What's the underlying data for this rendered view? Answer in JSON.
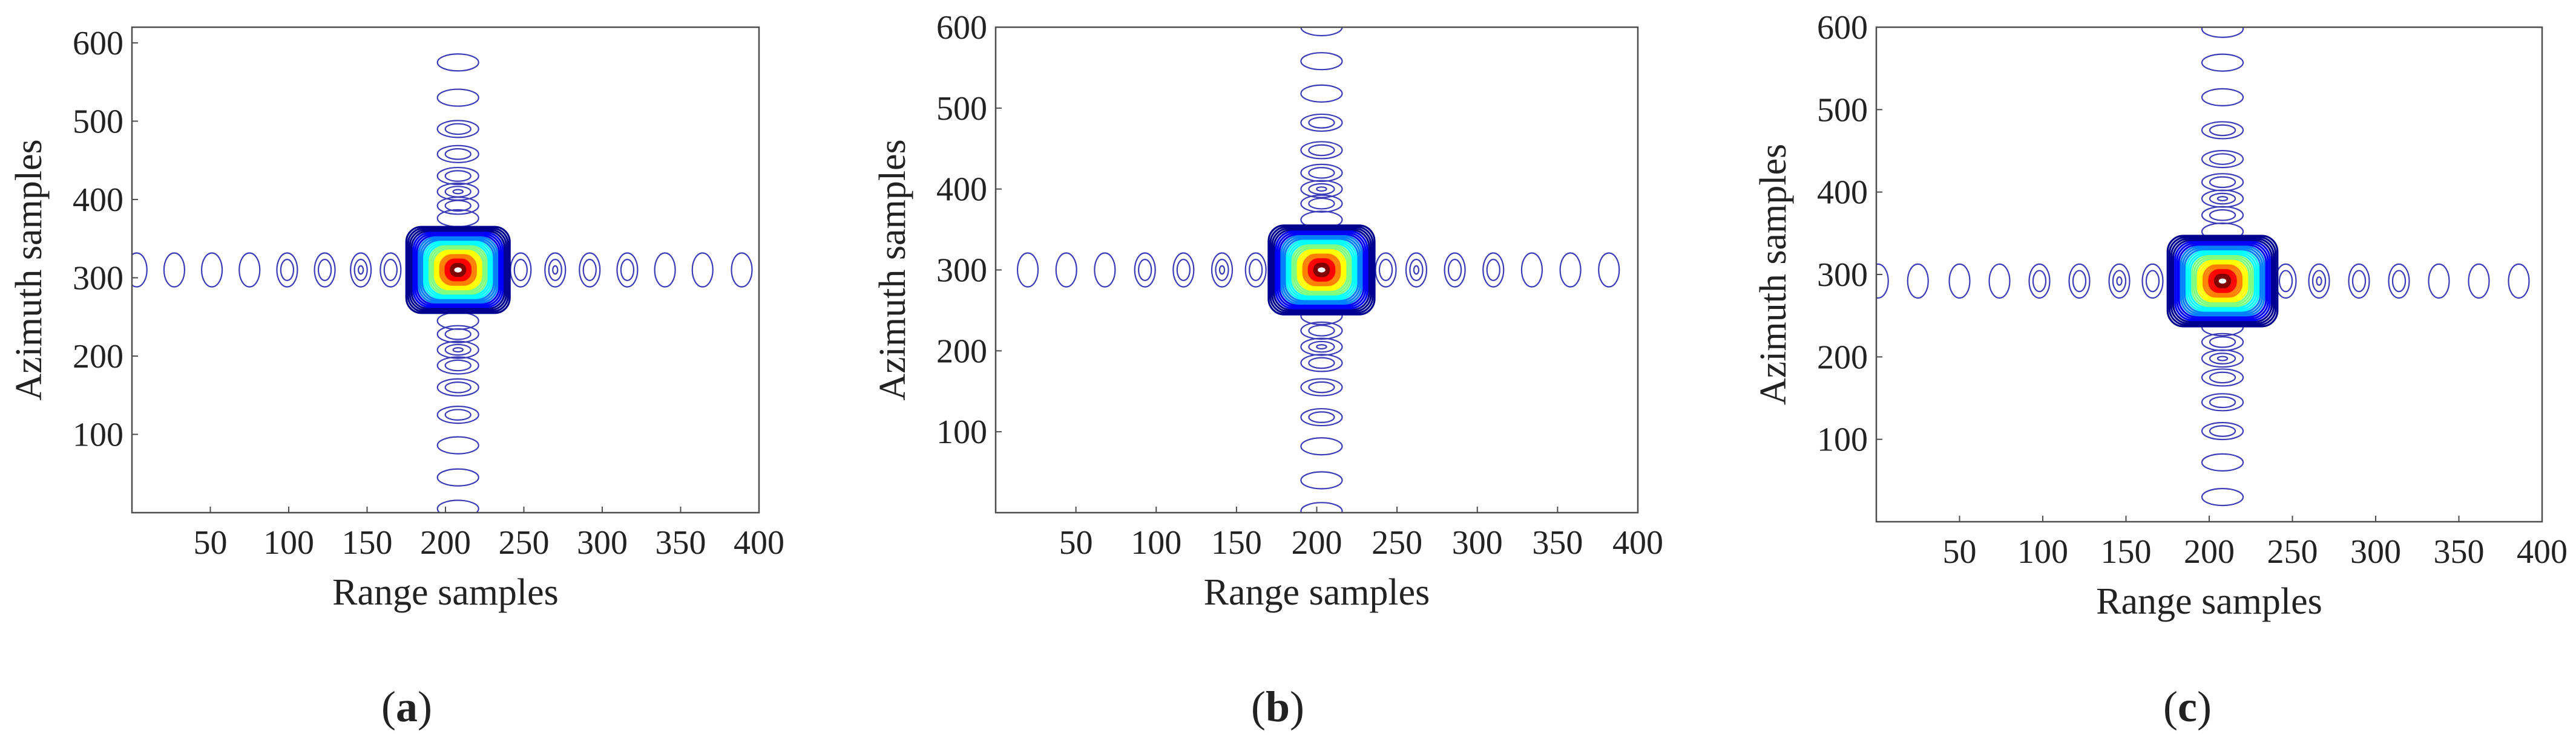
{
  "figure": {
    "colors": {
      "frame": "#4d4d4d",
      "text": "#222222",
      "sidelobe": "#3b3bb8",
      "jet": [
        "#00008f",
        "#0000ff",
        "#0080ff",
        "#00ffff",
        "#80ff80",
        "#ffff00",
        "#ff8000",
        "#ff0000",
        "#800000"
      ]
    }
  },
  "chart_data": [
    {
      "type": "contour",
      "panel_label": "a",
      "xlabel": "Range samples",
      "ylabel": "Azimuth samples",
      "xlim": [
        0,
        400
      ],
      "ylim": [
        0,
        620
      ],
      "xticks": [
        50,
        100,
        150,
        200,
        250,
        300,
        350,
        400
      ],
      "yticks": [
        100,
        200,
        300,
        400,
        500,
        600
      ],
      "peak": {
        "x": 208,
        "y": 310
      },
      "mainlobe_halfwidth": {
        "x": 33,
        "y": 55
      },
      "range_sidelobes": [
        {
          "x": 3,
          "rings": 1
        },
        {
          "x": 27,
          "rings": 1
        },
        {
          "x": 51,
          "rings": 1
        },
        {
          "x": 75,
          "rings": 1
        },
        {
          "x": 99,
          "rings": 2
        },
        {
          "x": 123,
          "rings": 2
        },
        {
          "x": 146,
          "rings": 3
        },
        {
          "x": 165,
          "rings": 2
        },
        {
          "x": 248,
          "rings": 2
        },
        {
          "x": 270,
          "rings": 3
        },
        {
          "x": 292,
          "rings": 2
        },
        {
          "x": 316,
          "rings": 2
        },
        {
          "x": 340,
          "rings": 1
        },
        {
          "x": 364,
          "rings": 1
        },
        {
          "x": 389,
          "rings": 1
        }
      ],
      "azimuth_sidelobes": [
        {
          "y": 5,
          "rings": 1
        },
        {
          "y": 45,
          "rings": 1
        },
        {
          "y": 86,
          "rings": 1
        },
        {
          "y": 125,
          "rings": 2
        },
        {
          "y": 160,
          "rings": 2
        },
        {
          "y": 188,
          "rings": 2
        },
        {
          "y": 208,
          "rings": 3
        },
        {
          "y": 228,
          "rings": 2
        },
        {
          "y": 245,
          "rings": 1
        },
        {
          "y": 376,
          "rings": 1
        },
        {
          "y": 392,
          "rings": 2
        },
        {
          "y": 410,
          "rings": 3
        },
        {
          "y": 430,
          "rings": 2
        },
        {
          "y": 458,
          "rings": 2
        },
        {
          "y": 490,
          "rings": 2
        },
        {
          "y": 530,
          "rings": 1
        },
        {
          "y": 575,
          "rings": 1
        }
      ]
    },
    {
      "type": "contour",
      "panel_label": "b",
      "xlabel": "Range samples",
      "ylabel": "Azimuth samples",
      "xlim": [
        0,
        400
      ],
      "ylim": [
        0,
        600
      ],
      "xticks": [
        50,
        100,
        150,
        200,
        250,
        300,
        350,
        400
      ],
      "yticks": [
        100,
        200,
        300,
        400,
        500,
        600
      ],
      "peak": {
        "x": 203,
        "y": 300
      },
      "mainlobe_halfwidth": {
        "x": 33,
        "y": 55
      },
      "range_sidelobes": [
        {
          "x": 20,
          "rings": 1
        },
        {
          "x": 44,
          "rings": 1
        },
        {
          "x": 68,
          "rings": 1
        },
        {
          "x": 93,
          "rings": 2
        },
        {
          "x": 117,
          "rings": 2
        },
        {
          "x": 141,
          "rings": 3
        },
        {
          "x": 162,
          "rings": 2
        },
        {
          "x": 243,
          "rings": 2
        },
        {
          "x": 262,
          "rings": 3
        },
        {
          "x": 286,
          "rings": 2
        },
        {
          "x": 310,
          "rings": 2
        },
        {
          "x": 334,
          "rings": 1
        },
        {
          "x": 358,
          "rings": 1
        },
        {
          "x": 382,
          "rings": 1
        }
      ],
      "azimuth_sidelobes": [
        {
          "y": 2,
          "rings": 1
        },
        {
          "y": 40,
          "rings": 1
        },
        {
          "y": 82,
          "rings": 1
        },
        {
          "y": 118,
          "rings": 2
        },
        {
          "y": 155,
          "rings": 2
        },
        {
          "y": 185,
          "rings": 2
        },
        {
          "y": 205,
          "rings": 3
        },
        {
          "y": 225,
          "rings": 2
        },
        {
          "y": 243,
          "rings": 1
        },
        {
          "y": 362,
          "rings": 1
        },
        {
          "y": 382,
          "rings": 2
        },
        {
          "y": 400,
          "rings": 3
        },
        {
          "y": 420,
          "rings": 2
        },
        {
          "y": 448,
          "rings": 2
        },
        {
          "y": 482,
          "rings": 2
        },
        {
          "y": 518,
          "rings": 1
        },
        {
          "y": 558,
          "rings": 1
        },
        {
          "y": 600,
          "rings": 1
        }
      ]
    },
    {
      "type": "contour",
      "panel_label": "c",
      "xlabel": "Range samples",
      "ylabel": "Azimuth samples",
      "xlim": [
        0,
        400
      ],
      "ylim": [
        0,
        600
      ],
      "xticks": [
        50,
        100,
        150,
        200,
        250,
        300,
        350,
        400
      ],
      "yticks": [
        100,
        200,
        300,
        400,
        500,
        600
      ],
      "peak": {
        "x": 208,
        "y": 292
      },
      "mainlobe_halfwidth": {
        "x": 33,
        "y": 55
      },
      "range_sidelobes": [
        {
          "x": 1,
          "rings": 1
        },
        {
          "x": 25,
          "rings": 1
        },
        {
          "x": 50,
          "rings": 1
        },
        {
          "x": 74,
          "rings": 1
        },
        {
          "x": 98,
          "rings": 2
        },
        {
          "x": 122,
          "rings": 2
        },
        {
          "x": 146,
          "rings": 3
        },
        {
          "x": 166,
          "rings": 2
        },
        {
          "x": 246,
          "rings": 2
        },
        {
          "x": 266,
          "rings": 3
        },
        {
          "x": 290,
          "rings": 2
        },
        {
          "x": 314,
          "rings": 2
        },
        {
          "x": 338,
          "rings": 1
        },
        {
          "x": 362,
          "rings": 1
        },
        {
          "x": 386,
          "rings": 1
        }
      ],
      "azimuth_sidelobes": [
        {
          "y": 30,
          "rings": 1
        },
        {
          "y": 72,
          "rings": 1
        },
        {
          "y": 110,
          "rings": 2
        },
        {
          "y": 145,
          "rings": 2
        },
        {
          "y": 175,
          "rings": 2
        },
        {
          "y": 198,
          "rings": 3
        },
        {
          "y": 218,
          "rings": 2
        },
        {
          "y": 236,
          "rings": 1
        },
        {
          "y": 352,
          "rings": 1
        },
        {
          "y": 372,
          "rings": 2
        },
        {
          "y": 392,
          "rings": 3
        },
        {
          "y": 412,
          "rings": 2
        },
        {
          "y": 440,
          "rings": 2
        },
        {
          "y": 475,
          "rings": 2
        },
        {
          "y": 515,
          "rings": 1
        },
        {
          "y": 557,
          "rings": 1
        },
        {
          "y": 598,
          "rings": 1
        }
      ]
    }
  ]
}
